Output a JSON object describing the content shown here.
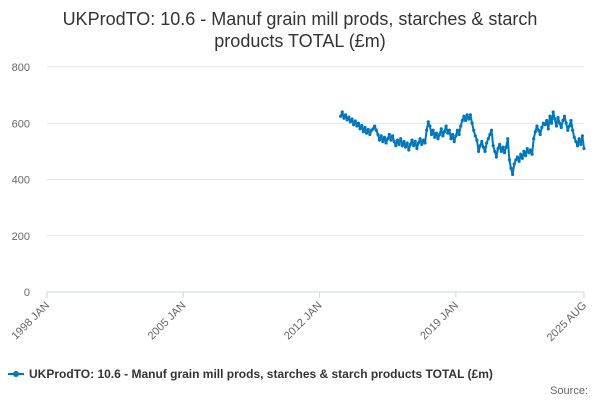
{
  "chart_data": {
    "type": "line",
    "title_lines": [
      "UKProdTO: 10.6 - Manuf grain mill prods, starches & starch",
      "products TOTAL (£m)"
    ],
    "xlabel": "",
    "ylabel": "",
    "ylim": [
      0,
      800
    ],
    "yticks": [
      0,
      200,
      400,
      600,
      800
    ],
    "xlim": [
      "1998-01",
      "2025-08"
    ],
    "xticks": [
      "1998 JAN",
      "2005 JAN",
      "2012 JAN",
      "2019 JAN",
      "2025 AUG"
    ],
    "grid": "horizontal",
    "legend_position": "bottom",
    "color": "#0077bb",
    "series": [
      {
        "name": "UKProdTO: 10.6 - Manuf grain mill prods, starches & starch products TOTAL (£m)",
        "data": [
          [
            "2013-02",
            625
          ],
          [
            "2013-03",
            640
          ],
          [
            "2013-04",
            618
          ],
          [
            "2013-05",
            630
          ],
          [
            "2013-06",
            612
          ],
          [
            "2013-07",
            622
          ],
          [
            "2013-08",
            605
          ],
          [
            "2013-09",
            615
          ],
          [
            "2013-10",
            595
          ],
          [
            "2013-11",
            608
          ],
          [
            "2013-12",
            590
          ],
          [
            "2014-01",
            600
          ],
          [
            "2014-02",
            580
          ],
          [
            "2014-03",
            592
          ],
          [
            "2014-04",
            570
          ],
          [
            "2014-05",
            585
          ],
          [
            "2014-06",
            565
          ],
          [
            "2014-07",
            578
          ],
          [
            "2014-08",
            560
          ],
          [
            "2014-09",
            575
          ],
          [
            "2014-10",
            580
          ],
          [
            "2014-11",
            590
          ],
          [
            "2014-12",
            575
          ],
          [
            "2015-01",
            560
          ],
          [
            "2015-02",
            540
          ],
          [
            "2015-03",
            555
          ],
          [
            "2015-04",
            535
          ],
          [
            "2015-05",
            550
          ],
          [
            "2015-06",
            530
          ],
          [
            "2015-07",
            545
          ],
          [
            "2015-08",
            560
          ],
          [
            "2015-09",
            540
          ],
          [
            "2015-10",
            555
          ],
          [
            "2015-11",
            535
          ],
          [
            "2015-12",
            520
          ],
          [
            "2016-01",
            540
          ],
          [
            "2016-02",
            525
          ],
          [
            "2016-03",
            545
          ],
          [
            "2016-04",
            520
          ],
          [
            "2016-05",
            535
          ],
          [
            "2016-06",
            515
          ],
          [
            "2016-07",
            530
          ],
          [
            "2016-08",
            505
          ],
          [
            "2016-09",
            525
          ],
          [
            "2016-10",
            540
          ],
          [
            "2016-11",
            520
          ],
          [
            "2016-12",
            535
          ],
          [
            "2017-01",
            510
          ],
          [
            "2017-02",
            530
          ],
          [
            "2017-03",
            545
          ],
          [
            "2017-04",
            525
          ],
          [
            "2017-05",
            540
          ],
          [
            "2017-06",
            530
          ],
          [
            "2017-07",
            575
          ],
          [
            "2017-08",
            605
          ],
          [
            "2017-09",
            590
          ],
          [
            "2017-10",
            560
          ],
          [
            "2017-11",
            575
          ],
          [
            "2017-12",
            550
          ],
          [
            "2018-01",
            565
          ],
          [
            "2018-02",
            545
          ],
          [
            "2018-03",
            560
          ],
          [
            "2018-04",
            580
          ],
          [
            "2018-05",
            555
          ],
          [
            "2018-06",
            570
          ],
          [
            "2018-07",
            590
          ],
          [
            "2018-08",
            565
          ],
          [
            "2018-09",
            575
          ],
          [
            "2018-10",
            545
          ],
          [
            "2018-11",
            560
          ],
          [
            "2018-12",
            535
          ],
          [
            "2019-01",
            555
          ],
          [
            "2019-02",
            575
          ],
          [
            "2019-03",
            560
          ],
          [
            "2019-04",
            590
          ],
          [
            "2019-05",
            610
          ],
          [
            "2019-06",
            625
          ],
          [
            "2019-07",
            610
          ],
          [
            "2019-08",
            630
          ],
          [
            "2019-09",
            615
          ],
          [
            "2019-10",
            630
          ],
          [
            "2019-11",
            600
          ],
          [
            "2019-12",
            575
          ],
          [
            "2020-01",
            555
          ],
          [
            "2020-02",
            540
          ],
          [
            "2020-03",
            500
          ],
          [
            "2020-04",
            520
          ],
          [
            "2020-05",
            535
          ],
          [
            "2020-06",
            515
          ],
          [
            "2020-07",
            500
          ],
          [
            "2020-08",
            530
          ],
          [
            "2020-09",
            545
          ],
          [
            "2020-10",
            560
          ],
          [
            "2020-11",
            575
          ],
          [
            "2020-12",
            520
          ],
          [
            "2021-01",
            500
          ],
          [
            "2021-02",
            480
          ],
          [
            "2021-03",
            510
          ],
          [
            "2021-04",
            525
          ],
          [
            "2021-05",
            500
          ],
          [
            "2021-06",
            515
          ],
          [
            "2021-07",
            495
          ],
          [
            "2021-08",
            515
          ],
          [
            "2021-09",
            545
          ],
          [
            "2021-10",
            470
          ],
          [
            "2021-11",
            440
          ],
          [
            "2021-12",
            418
          ],
          [
            "2022-01",
            455
          ],
          [
            "2022-02",
            470
          ],
          [
            "2022-03",
            480
          ],
          [
            "2022-04",
            465
          ],
          [
            "2022-05",
            490
          ],
          [
            "2022-06",
            475
          ],
          [
            "2022-07",
            500
          ],
          [
            "2022-08",
            485
          ],
          [
            "2022-09",
            510
          ],
          [
            "2022-10",
            495
          ],
          [
            "2022-11",
            505
          ],
          [
            "2022-12",
            490
          ],
          [
            "2023-01",
            545
          ],
          [
            "2023-02",
            570
          ],
          [
            "2023-03",
            590
          ],
          [
            "2023-04",
            575
          ],
          [
            "2023-05",
            560
          ],
          [
            "2023-06",
            585
          ],
          [
            "2023-07",
            600
          ],
          [
            "2023-08",
            595
          ],
          [
            "2023-09",
            610
          ],
          [
            "2023-10",
            580
          ],
          [
            "2023-11",
            625
          ],
          [
            "2023-12",
            600
          ],
          [
            "2024-01",
            640
          ],
          [
            "2024-02",
            615
          ],
          [
            "2024-03",
            590
          ],
          [
            "2024-04",
            620
          ],
          [
            "2024-05",
            600
          ],
          [
            "2024-06",
            585
          ],
          [
            "2024-07",
            610
          ],
          [
            "2024-08",
            625
          ],
          [
            "2024-09",
            600
          ],
          [
            "2024-10",
            575
          ],
          [
            "2024-11",
            590
          ],
          [
            "2024-12",
            610
          ],
          [
            "2025-01",
            575
          ],
          [
            "2025-02",
            550
          ],
          [
            "2025-03",
            535
          ],
          [
            "2025-04",
            520
          ],
          [
            "2025-05",
            545
          ],
          [
            "2025-06",
            525
          ],
          [
            "2025-07",
            555
          ],
          [
            "2025-08",
            510
          ]
        ]
      }
    ]
  },
  "footer": {
    "source_label": "Source:"
  }
}
